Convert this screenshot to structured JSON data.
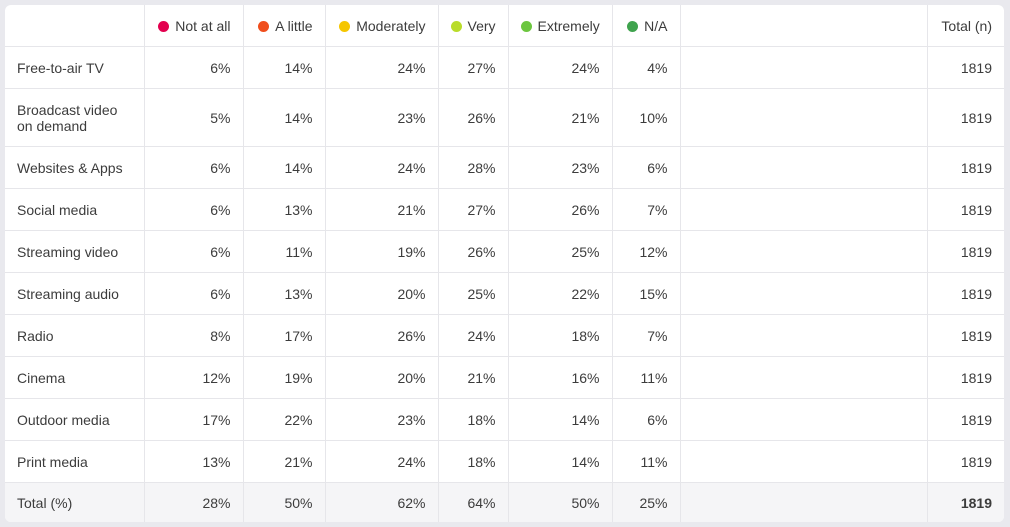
{
  "columns": [
    {
      "label": "Not at all",
      "color": "#e3004f"
    },
    {
      "label": "A little",
      "color": "#f04e1c"
    },
    {
      "label": "Moderately",
      "color": "#f5c600"
    },
    {
      "label": "Very",
      "color": "#b9dc2a"
    },
    {
      "label": "Extremely",
      "color": "#6cc63f"
    },
    {
      "label": "N/A",
      "color": "#3fa34d"
    }
  ],
  "total_header": "Total (n)",
  "rows": [
    {
      "label": "Free-to-air TV",
      "values": [
        "6%",
        "14%",
        "24%",
        "27%",
        "24%",
        "4%"
      ],
      "total": "1819"
    },
    {
      "label": "Broadcast video on demand",
      "values": [
        "5%",
        "14%",
        "23%",
        "26%",
        "21%",
        "10%"
      ],
      "total": "1819"
    },
    {
      "label": "Websites & Apps",
      "values": [
        "6%",
        "14%",
        "24%",
        "28%",
        "23%",
        "6%"
      ],
      "total": "1819"
    },
    {
      "label": "Social media",
      "values": [
        "6%",
        "13%",
        "21%",
        "27%",
        "26%",
        "7%"
      ],
      "total": "1819"
    },
    {
      "label": "Streaming video",
      "values": [
        "6%",
        "11%",
        "19%",
        "26%",
        "25%",
        "12%"
      ],
      "total": "1819"
    },
    {
      "label": "Streaming audio",
      "values": [
        "6%",
        "13%",
        "20%",
        "25%",
        "22%",
        "15%"
      ],
      "total": "1819"
    },
    {
      "label": "Radio",
      "values": [
        "8%",
        "17%",
        "26%",
        "24%",
        "18%",
        "7%"
      ],
      "total": "1819"
    },
    {
      "label": "Cinema",
      "values": [
        "12%",
        "19%",
        "20%",
        "21%",
        "16%",
        "11%"
      ],
      "total": "1819"
    },
    {
      "label": "Outdoor media",
      "values": [
        "17%",
        "22%",
        "23%",
        "18%",
        "14%",
        "6%"
      ],
      "total": "1819"
    },
    {
      "label": "Print media",
      "values": [
        "13%",
        "21%",
        "24%",
        "18%",
        "14%",
        "11%"
      ],
      "total": "1819"
    }
  ],
  "total_row": {
    "label": "Total (%)",
    "values": [
      "28%",
      "50%",
      "62%",
      "64%",
      "50%",
      "25%"
    ],
    "total": "1819"
  }
}
